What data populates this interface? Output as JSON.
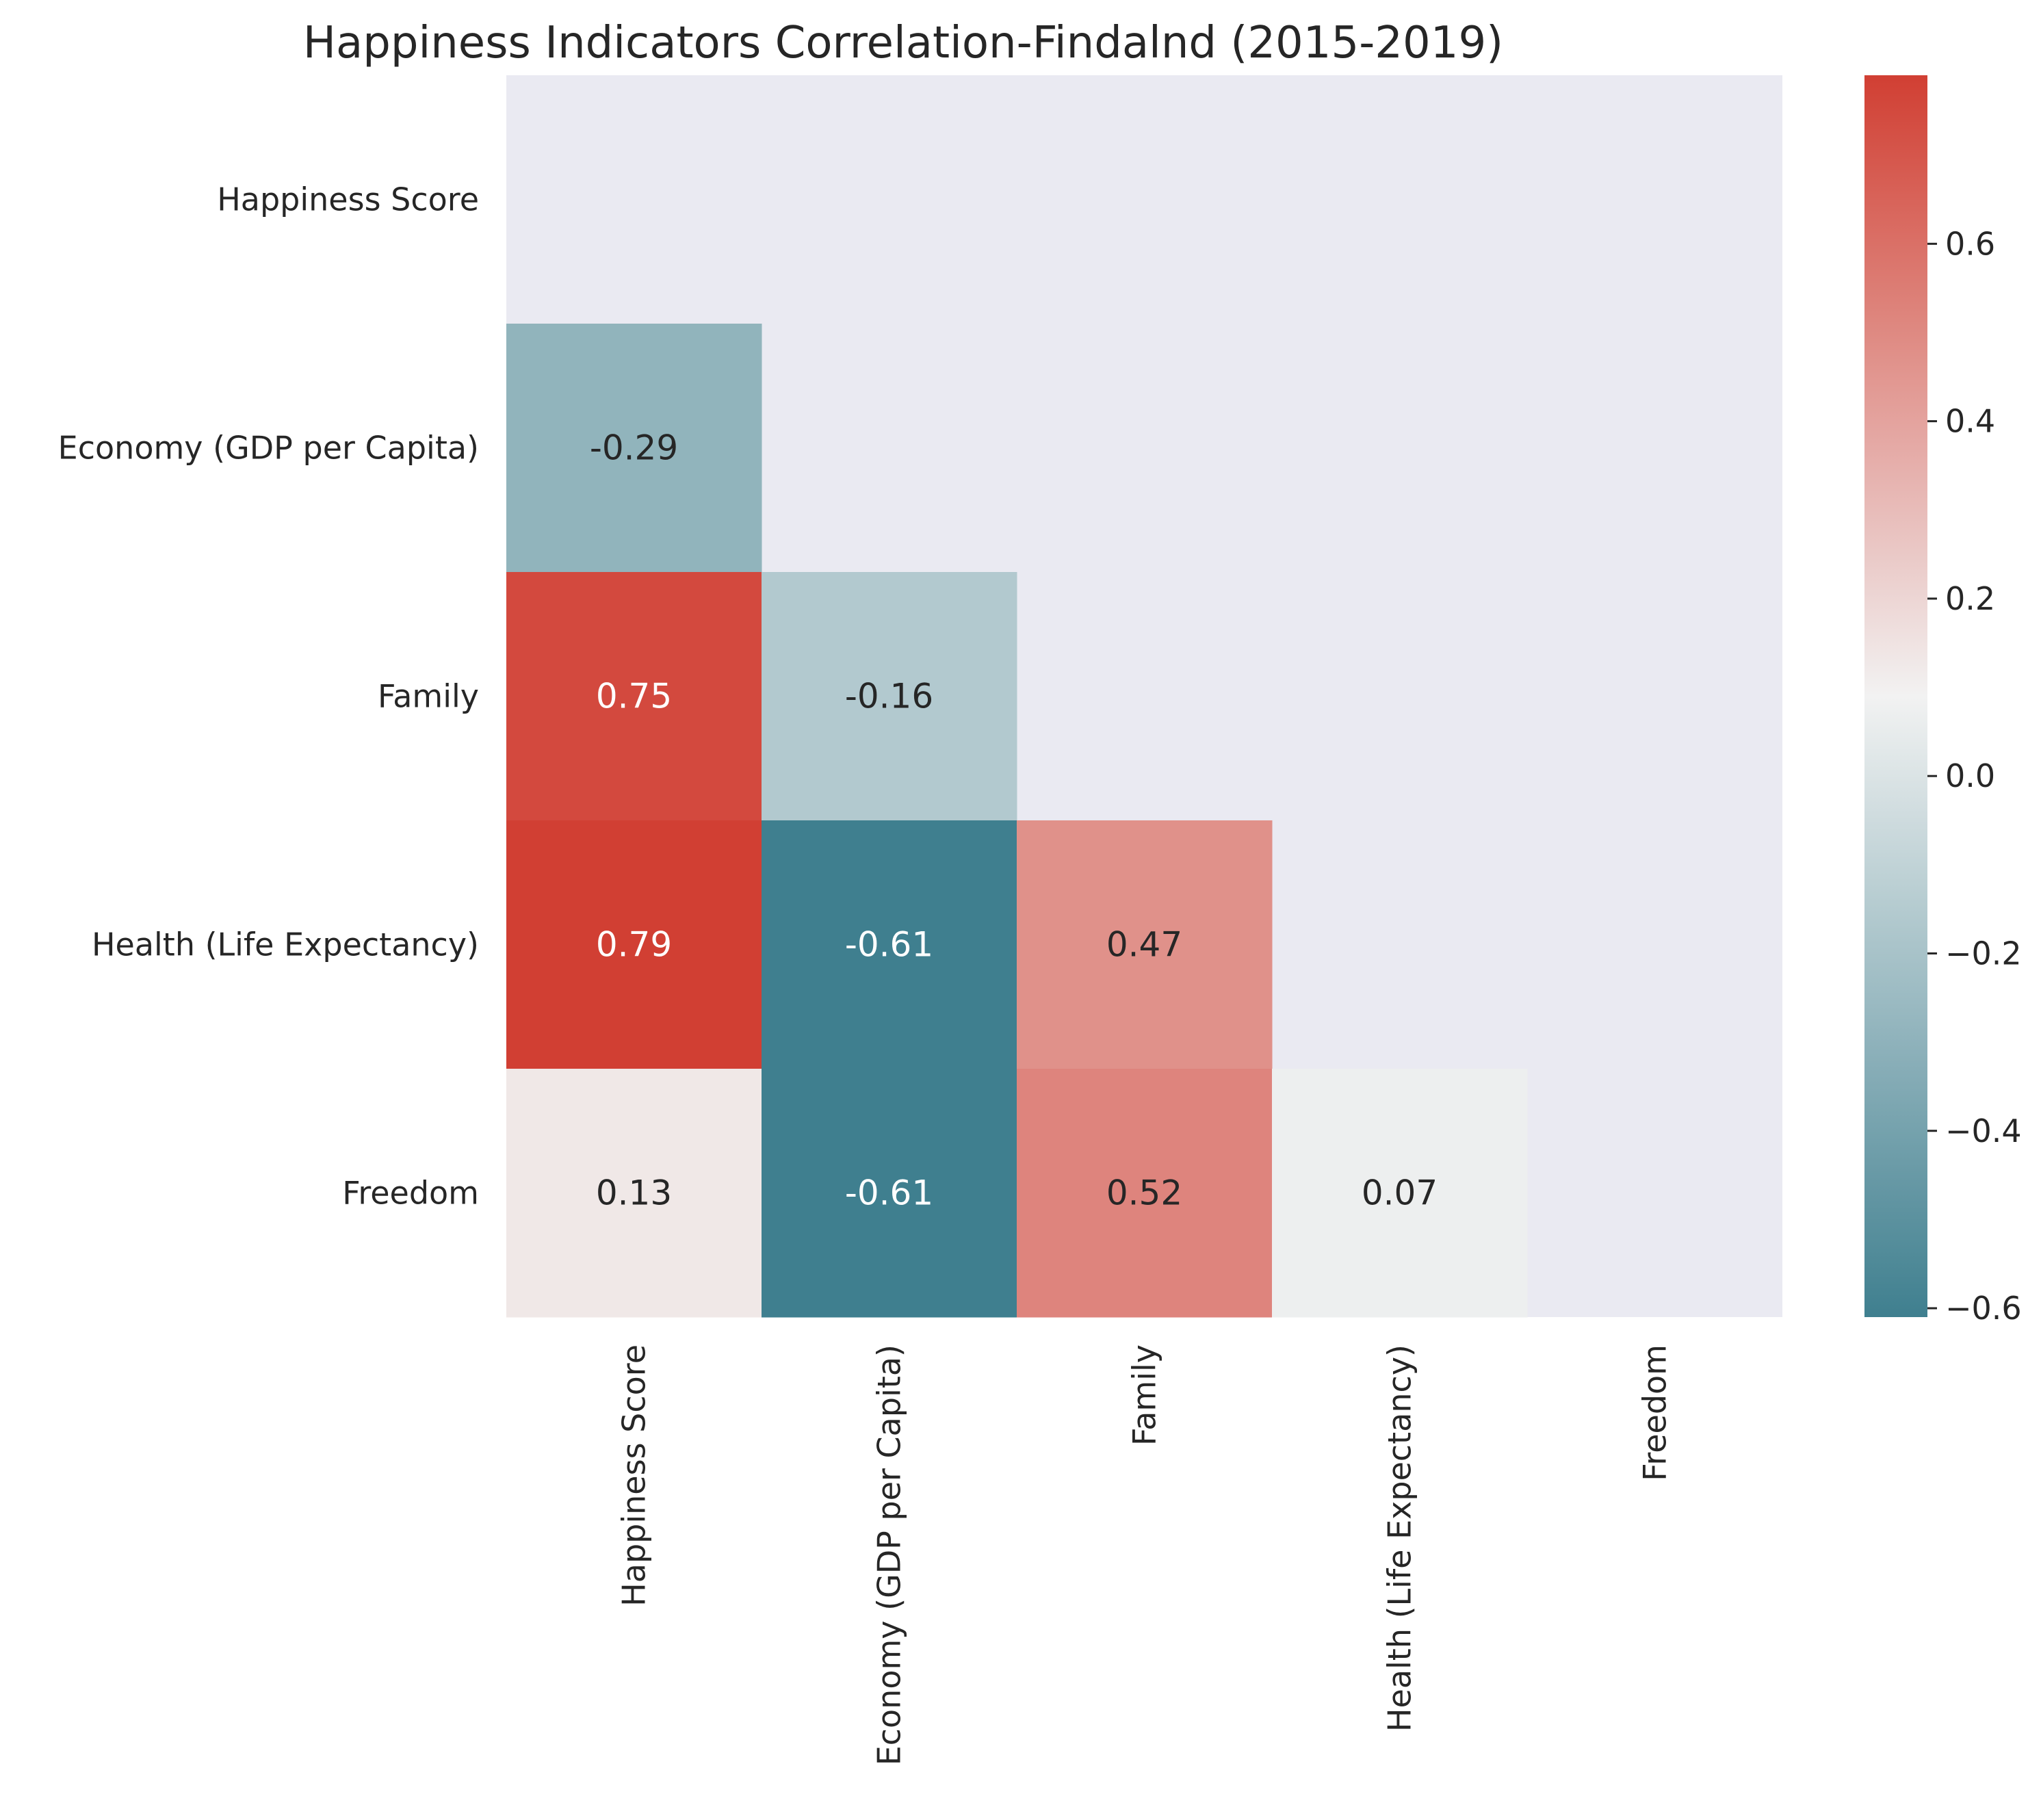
{
  "chart_data": {
    "type": "heatmap",
    "title": "Happiness Indicators Correlation-Findalnd (2015-2019)",
    "xlabel": "",
    "ylabel": "",
    "categories": [
      "Happiness Score",
      "Economy (GDP per Capita)",
      "Family",
      "Health (Life Expectancy)",
      "Freedom"
    ],
    "matrix": [
      [
        null,
        null,
        null,
        null,
        null
      ],
      [
        -0.29,
        null,
        null,
        null,
        null
      ],
      [
        0.75,
        -0.16,
        null,
        null,
        null
      ],
      [
        0.79,
        -0.61,
        0.47,
        null,
        null
      ],
      [
        0.13,
        -0.61,
        0.52,
        0.07,
        null
      ]
    ],
    "mask": "upper-triangle-including-diagonal",
    "annotations": true,
    "value_format": "2 decimals",
    "colorbar": {
      "vmin": -0.61,
      "vmax": 0.79,
      "ticks": [
        -0.6,
        -0.4,
        -0.2,
        0.0,
        0.2,
        0.4,
        0.6
      ],
      "tick_labels": [
        "−0.6",
        "−0.4",
        "−0.2",
        "0.0",
        "0.2",
        "0.4",
        "0.6"
      ],
      "low_color": "#3f7f8f",
      "mid_color": "#f2f2f2",
      "high_color": "#d13f33"
    },
    "background_color": "#eaeaf2",
    "grid": false
  }
}
